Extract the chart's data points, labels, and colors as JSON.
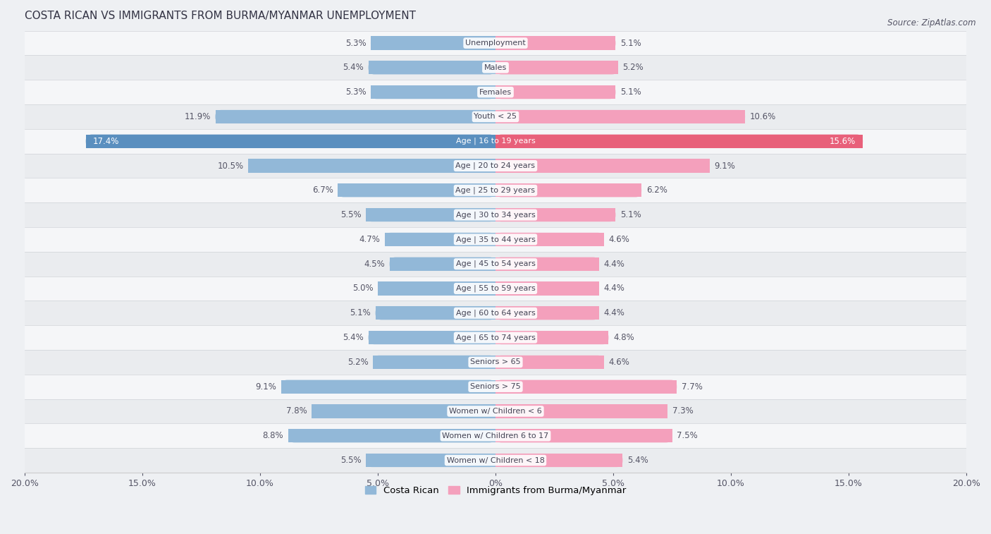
{
  "title": "Costa Rican vs Immigrants from Burma/Myanmar Unemployment",
  "source": "Source: ZipAtlas.com",
  "categories": [
    "Unemployment",
    "Males",
    "Females",
    "Youth < 25",
    "Age | 16 to 19 years",
    "Age | 20 to 24 years",
    "Age | 25 to 29 years",
    "Age | 30 to 34 years",
    "Age | 35 to 44 years",
    "Age | 45 to 54 years",
    "Age | 55 to 59 years",
    "Age | 60 to 64 years",
    "Age | 65 to 74 years",
    "Seniors > 65",
    "Seniors > 75",
    "Women w/ Children < 6",
    "Women w/ Children 6 to 17",
    "Women w/ Children < 18"
  ],
  "costa_rican": [
    5.3,
    5.4,
    5.3,
    11.9,
    17.4,
    10.5,
    6.7,
    5.5,
    4.7,
    4.5,
    5.0,
    5.1,
    5.4,
    5.2,
    9.1,
    7.8,
    8.8,
    5.5
  ],
  "burma": [
    5.1,
    5.2,
    5.1,
    10.6,
    15.6,
    9.1,
    6.2,
    5.1,
    4.6,
    4.4,
    4.4,
    4.4,
    4.8,
    4.6,
    7.7,
    7.3,
    7.5,
    5.4
  ],
  "costa_rican_color_normal": "#92b8d8",
  "costa_rican_color_highlight": "#5a8fbf",
  "burma_color_normal": "#f4a0bc",
  "burma_color_highlight": "#e8607a",
  "bg_color": "#eef0f3",
  "row_light": "#f5f6f8",
  "row_dark": "#eaecef",
  "text_color": "#555566",
  "title_color": "#333344",
  "legend_cr": "Costa Rican",
  "legend_burma": "Immigrants from Burma/Myanmar",
  "bar_height": 0.55,
  "xlim": 20.0,
  "tick_positions": [
    -20,
    -15,
    -10,
    -5,
    0,
    5,
    10,
    15,
    20
  ],
  "tick_labels": [
    "20.0%",
    "15.0%",
    "10.0%",
    "5.0%",
    "0%",
    "5.0%",
    "10.0%",
    "15.0%",
    "20.0%"
  ]
}
